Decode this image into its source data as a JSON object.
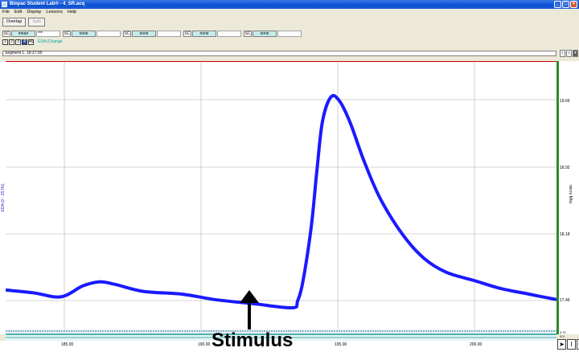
{
  "window": {
    "title": "Biopac Student Lab® - 4_SR.acq"
  },
  "menu": [
    "File",
    "Edit",
    "Display",
    "Lessons",
    "Help"
  ],
  "toolbar": {
    "overlap_label": "Overlap",
    "split_label": "Split"
  },
  "channel_measurements": [
    {
      "sc": "SC",
      "fn": "mean",
      "value": "***"
    },
    {
      "sc": "SC",
      "fn": "none",
      "value": ""
    },
    {
      "sc": "SC",
      "fn": "none",
      "value": ""
    },
    {
      "sc": "SC",
      "fn": "none",
      "value": ""
    },
    {
      "sc": "SC",
      "fn": "none",
      "value": ""
    }
  ],
  "channel_boxes": [
    "1",
    "2",
    "3",
    "4",
    "40"
  ],
  "channel_label": "EDA (Change",
  "segment": {
    "label": "Segment 1, 18:37:00"
  },
  "segment_nav": [
    "‹",
    "›",
    "▾"
  ],
  "plot": {
    "y_axis_label": "EDA (0 - 35 Hz)",
    "unit_label": "micro Mho",
    "y_ticks": [
      "19.66",
      "18.92",
      "18.18",
      "17.46"
    ],
    "x_ticks": [
      "185.00",
      "190.00",
      "195.00",
      "200.00"
    ],
    "bottom_ticks": [
      "3.70",
      "3.5"
    ],
    "trace_color": "#1a1aff",
    "grid_color": "#b0b0b0",
    "annotation": "Stimulus"
  },
  "tools": [
    "➤",
    "I",
    "Q"
  ],
  "trace_points": [
    [
      0,
      0.835
    ],
    [
      0.05,
      0.845
    ],
    [
      0.1,
      0.86
    ],
    [
      0.14,
      0.82
    ],
    [
      0.17,
      0.805
    ],
    [
      0.2,
      0.815
    ],
    [
      0.25,
      0.84
    ],
    [
      0.32,
      0.85
    ],
    [
      0.38,
      0.87
    ],
    [
      0.45,
      0.885
    ],
    [
      0.52,
      0.9
    ],
    [
      0.53,
      0.875
    ],
    [
      0.54,
      0.8
    ],
    [
      0.555,
      0.6
    ],
    [
      0.565,
      0.4
    ],
    [
      0.575,
      0.22
    ],
    [
      0.59,
      0.13
    ],
    [
      0.605,
      0.14
    ],
    [
      0.625,
      0.22
    ],
    [
      0.65,
      0.36
    ],
    [
      0.68,
      0.5
    ],
    [
      0.72,
      0.63
    ],
    [
      0.76,
      0.72
    ],
    [
      0.8,
      0.77
    ],
    [
      0.85,
      0.8
    ],
    [
      0.9,
      0.83
    ],
    [
      0.95,
      0.85
    ],
    [
      1.0,
      0.87
    ]
  ]
}
